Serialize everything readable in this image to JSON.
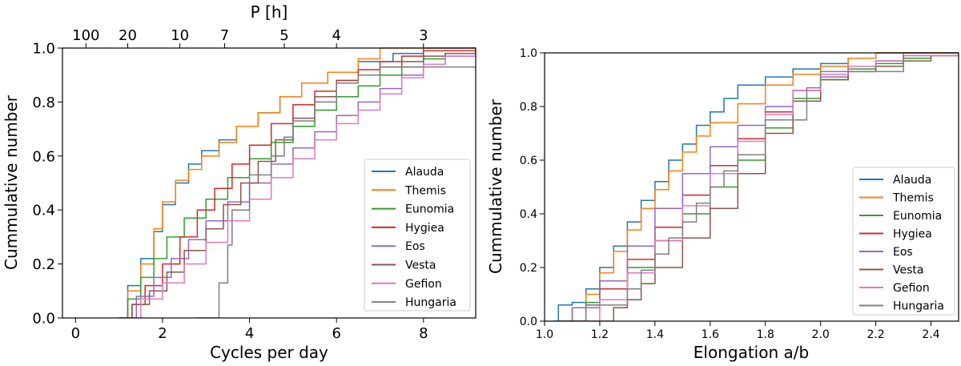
{
  "chart_data": [
    {
      "type": "line",
      "subtype": "step-cdf",
      "title": "",
      "xlabel": "Cycles per day",
      "ylabel": "Cummulative number",
      "top_xlabel": "P [h]",
      "xlim": [
        -0.3,
        9.2
      ],
      "ylim": [
        0,
        1
      ],
      "xticks": [
        0,
        2,
        4,
        6,
        8
      ],
      "xtick_labels": [
        "0",
        "2",
        "4",
        "6",
        "8"
      ],
      "yticks": [
        0,
        0.2,
        0.4,
        0.6,
        0.8,
        1.0
      ],
      "ytick_labels": [
        "0.0",
        "0.2",
        "0.4",
        "0.6",
        "0.8",
        "1.0"
      ],
      "top_ticks_hours": [
        100,
        20,
        10,
        7,
        5,
        4,
        3
      ],
      "top_tick_labels": [
        "100",
        "20",
        "10",
        "7",
        "5",
        "4",
        "3"
      ],
      "legend_position": "lower-right",
      "series": [
        {
          "name": "Alauda",
          "color": "#1f77b4",
          "x": [
            1.0,
            1.2,
            1.5,
            1.8,
            2.0,
            2.3,
            2.6,
            2.9,
            3.3,
            3.7,
            4.2,
            4.7,
            5.2,
            5.8,
            6.5,
            7.3,
            8.0,
            9.2
          ],
          "y": [
            0.0,
            0.12,
            0.22,
            0.32,
            0.42,
            0.5,
            0.57,
            0.62,
            0.66,
            0.71,
            0.76,
            0.82,
            0.87,
            0.91,
            0.95,
            0.98,
            1.0,
            1.0
          ]
        },
        {
          "name": "Themis",
          "color": "#ff7f0e",
          "x": [
            1.0,
            1.2,
            1.5,
            1.8,
            2.0,
            2.3,
            2.6,
            2.9,
            3.3,
            3.7,
            4.2,
            4.7,
            5.2,
            5.8,
            6.5,
            7.0,
            9.2
          ],
          "y": [
            0.0,
            0.1,
            0.2,
            0.33,
            0.43,
            0.51,
            0.55,
            0.6,
            0.65,
            0.71,
            0.76,
            0.82,
            0.87,
            0.91,
            0.96,
            1.0,
            1.0
          ]
        },
        {
          "name": "Eunomia",
          "color": "#2ca02c",
          "x": [
            1.0,
            1.2,
            1.5,
            1.8,
            2.1,
            2.5,
            3.0,
            3.5,
            4.0,
            4.5,
            5.0,
            5.5,
            6.0,
            6.5,
            7.0,
            7.5,
            8.0,
            8.5,
            9.2
          ],
          "y": [
            0.0,
            0.07,
            0.15,
            0.22,
            0.3,
            0.37,
            0.44,
            0.52,
            0.59,
            0.65,
            0.71,
            0.77,
            0.82,
            0.86,
            0.9,
            0.93,
            0.96,
            0.98,
            0.99
          ]
        },
        {
          "name": "Hygiea",
          "color": "#d62728",
          "x": [
            1.0,
            1.3,
            1.6,
            2.0,
            2.4,
            2.8,
            3.2,
            3.6,
            4.0,
            4.5,
            5.0,
            5.5,
            6.0,
            6.5,
            7.0,
            7.5,
            8.0,
            9.2
          ],
          "y": [
            0.0,
            0.05,
            0.12,
            0.2,
            0.3,
            0.4,
            0.48,
            0.57,
            0.64,
            0.72,
            0.79,
            0.84,
            0.88,
            0.92,
            0.95,
            0.97,
            0.99,
            1.0
          ]
        },
        {
          "name": "Eos",
          "color": "#9467bd",
          "x": [
            1.0,
            1.4,
            1.8,
            2.2,
            2.6,
            3.0,
            3.5,
            4.0,
            4.5,
            5.0,
            5.5,
            6.0,
            6.5,
            7.0,
            7.5,
            8.0,
            8.5,
            9.2
          ],
          "y": [
            0.0,
            0.08,
            0.15,
            0.22,
            0.29,
            0.36,
            0.43,
            0.5,
            0.57,
            0.63,
            0.69,
            0.75,
            0.8,
            0.85,
            0.9,
            0.94,
            0.97,
            0.99
          ]
        },
        {
          "name": "Vesta",
          "color": "#8c564b",
          "x": [
            1.0,
            1.3,
            1.7,
            2.1,
            2.5,
            3.0,
            3.4,
            3.8,
            4.2,
            4.6,
            5.0,
            5.5,
            6.0,
            6.5,
            7.0,
            7.5,
            8.0,
            8.5,
            9.2
          ],
          "y": [
            0.0,
            0.05,
            0.1,
            0.17,
            0.25,
            0.33,
            0.42,
            0.5,
            0.58,
            0.66,
            0.74,
            0.82,
            0.87,
            0.9,
            0.93,
            0.95,
            0.97,
            0.98,
            0.99
          ]
        },
        {
          "name": "Gefion",
          "color": "#e377c2",
          "x": [
            1.0,
            1.5,
            2.0,
            2.5,
            3.0,
            3.5,
            4.0,
            4.5,
            5.0,
            5.5,
            6.0,
            6.5,
            7.0,
            7.5,
            8.0,
            8.5,
            9.2
          ],
          "y": [
            0.0,
            0.07,
            0.13,
            0.2,
            0.28,
            0.36,
            0.44,
            0.52,
            0.59,
            0.66,
            0.72,
            0.77,
            0.83,
            0.89,
            0.94,
            0.97,
            0.99
          ]
        },
        {
          "name": "Hungaria",
          "color": "#7f7f7f",
          "x": [
            2.8,
            3.3,
            3.5,
            3.6,
            4.0,
            4.5,
            4.8,
            5.0,
            5.5,
            6.0,
            6.5,
            7.0,
            7.5,
            8.5,
            9.2
          ],
          "y": [
            0.0,
            0.13,
            0.27,
            0.4,
            0.53,
            0.6,
            0.67,
            0.73,
            0.8,
            0.87,
            0.9,
            0.93,
            0.93,
            0.93,
            0.93
          ]
        }
      ]
    },
    {
      "type": "line",
      "subtype": "step-cdf",
      "title": "",
      "xlabel": "Elongation a/b",
      "ylabel": "Cummulative number",
      "xlim": [
        1.0,
        2.5
      ],
      "ylim": [
        0,
        1
      ],
      "xticks": [
        1.0,
        1.2,
        1.4,
        1.6,
        1.8,
        2.0,
        2.2,
        2.4
      ],
      "xtick_labels": [
        "1.0",
        "1.2",
        "1.4",
        "1.6",
        "1.8",
        "2.0",
        "2.2",
        "2.4"
      ],
      "yticks": [
        0,
        0.2,
        0.4,
        0.6,
        0.8,
        1.0
      ],
      "ytick_labels": [
        "0.0",
        "0.2",
        "0.4",
        "0.6",
        "0.8",
        "1.0"
      ],
      "legend_position": "lower-right",
      "series": [
        {
          "name": "Alauda",
          "color": "#1f77b4",
          "x": [
            1.03,
            1.05,
            1.1,
            1.15,
            1.2,
            1.25,
            1.3,
            1.35,
            1.4,
            1.45,
            1.5,
            1.55,
            1.6,
            1.65,
            1.7,
            1.8,
            1.9,
            2.0,
            2.1,
            2.2,
            2.5
          ],
          "y": [
            0.0,
            0.06,
            0.07,
            0.12,
            0.2,
            0.28,
            0.37,
            0.45,
            0.52,
            0.6,
            0.66,
            0.73,
            0.78,
            0.83,
            0.88,
            0.91,
            0.94,
            0.96,
            0.98,
            1.0,
            1.0
          ]
        },
        {
          "name": "Themis",
          "color": "#ff7f0e",
          "x": [
            1.05,
            1.1,
            1.15,
            1.2,
            1.25,
            1.3,
            1.35,
            1.4,
            1.45,
            1.5,
            1.55,
            1.6,
            1.7,
            1.8,
            1.9,
            2.0,
            2.1,
            2.2,
            2.5
          ],
          "y": [
            0.0,
            0.05,
            0.1,
            0.18,
            0.26,
            0.34,
            0.42,
            0.49,
            0.56,
            0.63,
            0.69,
            0.74,
            0.81,
            0.88,
            0.92,
            0.95,
            0.98,
            1.0,
            1.0
          ]
        },
        {
          "name": "Eunomia",
          "color": "#2ca02c",
          "x": [
            1.08,
            1.15,
            1.2,
            1.3,
            1.4,
            1.5,
            1.6,
            1.7,
            1.8,
            1.9,
            2.0,
            2.1,
            2.2,
            2.3,
            2.4,
            2.5
          ],
          "y": [
            0.0,
            0.07,
            0.12,
            0.2,
            0.3,
            0.4,
            0.5,
            0.6,
            0.72,
            0.83,
            0.9,
            0.94,
            0.96,
            0.98,
            0.99,
            1.0
          ]
        },
        {
          "name": "Hygiea",
          "color": "#d62728",
          "x": [
            1.08,
            1.15,
            1.2,
            1.3,
            1.4,
            1.5,
            1.6,
            1.7,
            1.8,
            1.9,
            2.0,
            2.1,
            2.2,
            2.3,
            2.5
          ],
          "y": [
            0.0,
            0.06,
            0.12,
            0.23,
            0.35,
            0.47,
            0.58,
            0.68,
            0.78,
            0.86,
            0.92,
            0.95,
            0.97,
            0.99,
            1.0
          ]
        },
        {
          "name": "Eos",
          "color": "#9467bd",
          "x": [
            1.05,
            1.1,
            1.2,
            1.3,
            1.4,
            1.5,
            1.6,
            1.7,
            1.8,
            1.9,
            2.0,
            2.1,
            2.2,
            2.3,
            2.5
          ],
          "y": [
            0.0,
            0.05,
            0.15,
            0.28,
            0.42,
            0.55,
            0.65,
            0.73,
            0.8,
            0.86,
            0.91,
            0.95,
            0.97,
            0.99,
            1.0
          ]
        },
        {
          "name": "Vesta",
          "color": "#8c564b",
          "x": [
            1.15,
            1.25,
            1.3,
            1.35,
            1.4,
            1.5,
            1.6,
            1.7,
            1.8,
            1.9,
            2.0,
            2.1,
            2.2,
            2.3,
            2.4,
            2.5
          ],
          "y": [
            0.0,
            0.05,
            0.08,
            0.14,
            0.2,
            0.31,
            0.42,
            0.55,
            0.7,
            0.82,
            0.9,
            0.93,
            0.95,
            0.97,
            0.99,
            1.0
          ]
        },
        {
          "name": "Gefion",
          "color": "#e377c2",
          "x": [
            1.14,
            1.2,
            1.3,
            1.4,
            1.5,
            1.6,
            1.7,
            1.8,
            1.9,
            2.0,
            2.1,
            2.2,
            2.3,
            2.5
          ],
          "y": [
            0.0,
            0.08,
            0.18,
            0.3,
            0.43,
            0.55,
            0.67,
            0.77,
            0.86,
            0.92,
            0.95,
            0.97,
            0.99,
            1.0
          ]
        },
        {
          "name": "Hungaria",
          "color": "#7f7f7f",
          "x": [
            1.05,
            1.15,
            1.3,
            1.35,
            1.4,
            1.45,
            1.5,
            1.55,
            1.6,
            1.65,
            1.7,
            1.8,
            1.95,
            2.0,
            2.3,
            2.5
          ],
          "y": [
            0.0,
            0.06,
            0.12,
            0.19,
            0.25,
            0.31,
            0.37,
            0.44,
            0.5,
            0.56,
            0.62,
            0.75,
            0.87,
            0.93,
            1.0,
            1.0
          ]
        }
      ]
    }
  ]
}
